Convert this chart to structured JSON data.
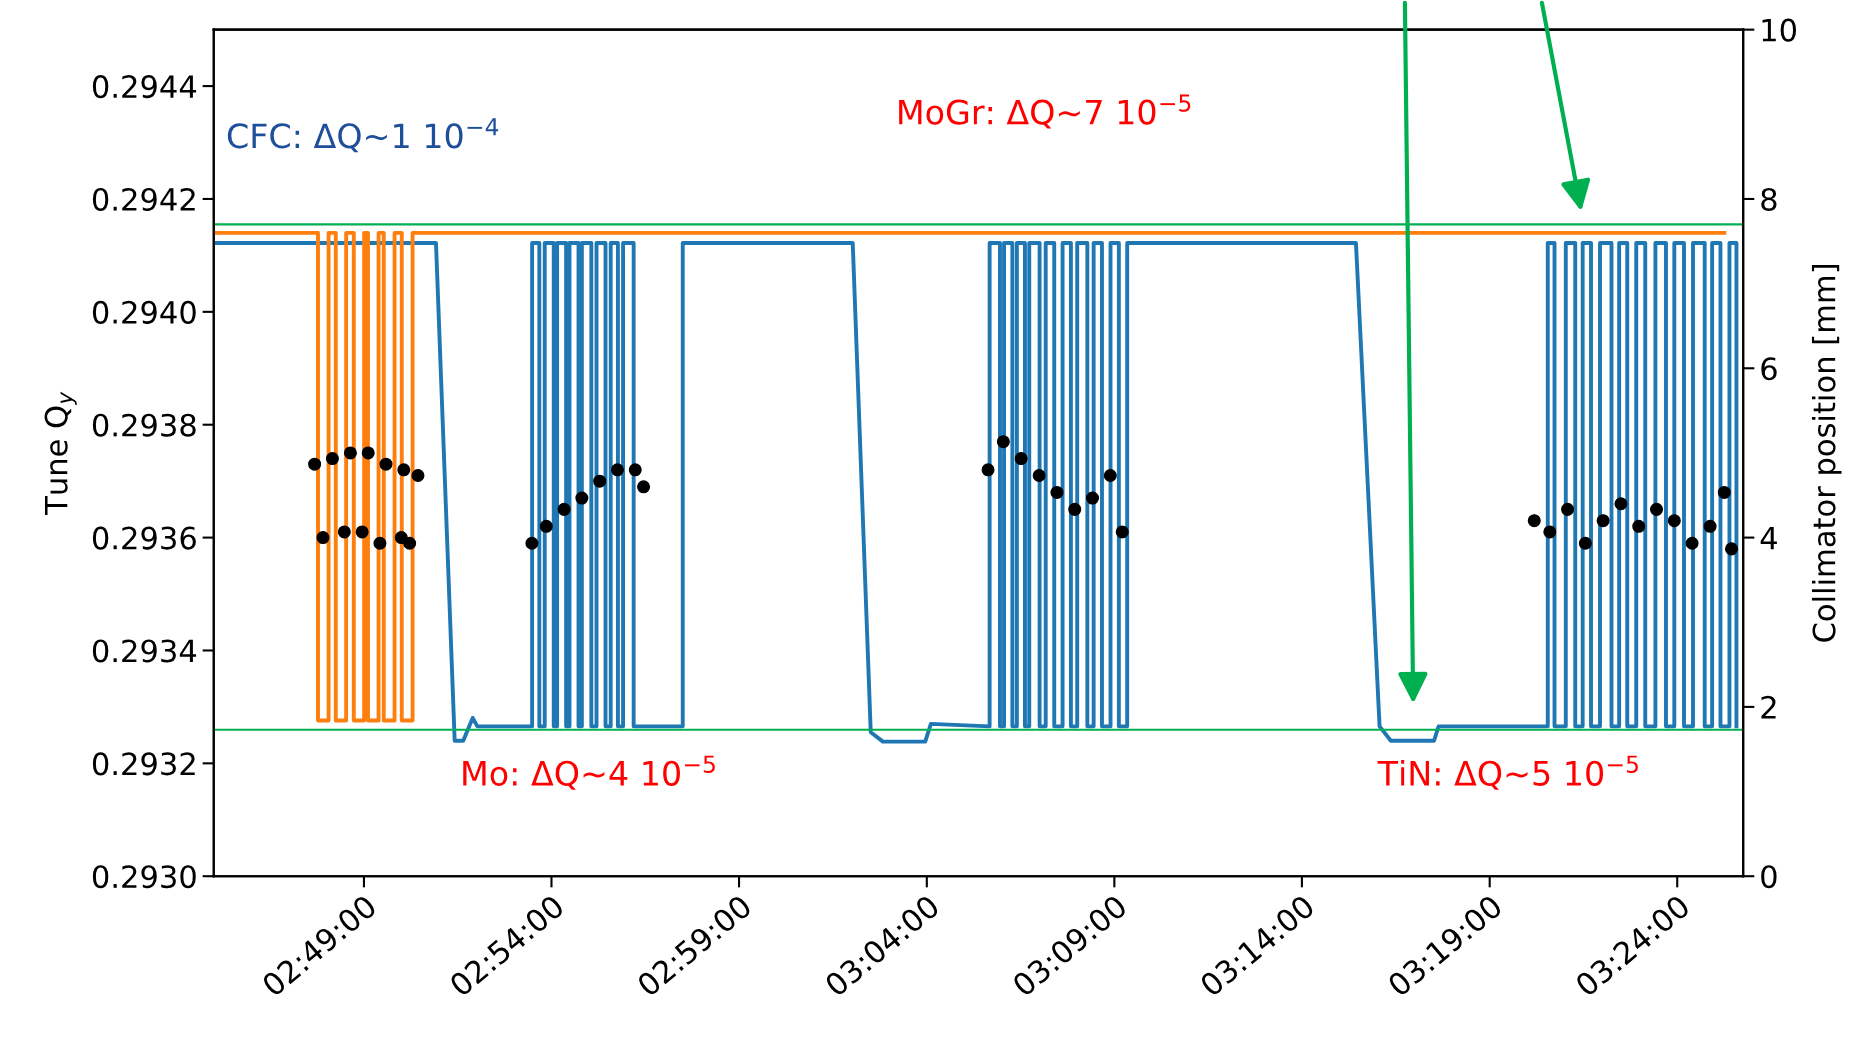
{
  "chart_data": {
    "type": "line",
    "ylabel": "Tune Q$_{y}$",
    "y2label": "Collimator position [mm]",
    "xlim": [
      2.75,
      3.4293
    ],
    "xticks": [
      {
        "value": 2.8167,
        "label": "02:49:00"
      },
      {
        "value": 2.9,
        "label": "02:54:00"
      },
      {
        "value": 2.9833,
        "label": "02:59:00"
      },
      {
        "value": 3.0667,
        "label": "03:04:00"
      },
      {
        "value": 3.15,
        "label": "03:09:00"
      },
      {
        "value": 3.2333,
        "label": "03:14:00"
      },
      {
        "value": 3.3167,
        "label": "03:19:00"
      },
      {
        "value": 3.4,
        "label": "03:24:00"
      }
    ],
    "ylim": [
      0.293,
      0.2945
    ],
    "yticks": [
      {
        "value": 0.293,
        "label": "0.2930"
      },
      0.2932,
      0.2934,
      0.2936,
      0.2938,
      {
        "value": 0.294,
        "label": "0.2940"
      },
      0.2942,
      0.2944
    ],
    "y2lim": [
      0,
      10
    ],
    "y2ticks": [
      0,
      2,
      4,
      6,
      8,
      10
    ],
    "annotations": [
      "CFC: ΔQ~1 10$^{−4}$",
      "MoGr: ΔQ~7 10$^{−5}$",
      "Mo: ΔQ~4 10$^{−5}$",
      "TiN: ΔQ~5 10$^{−5}$"
    ],
    "ref_lines": [
      {
        "axis": "y2",
        "value": 7.7,
        "color": "#00b050"
      },
      {
        "axis": "y2",
        "value": 1.73,
        "color": "#00b050"
      }
    ],
    "series": [
      {
        "type": "scatter",
        "axis": "y",
        "color": "#000000",
        "marker": "circle",
        "x": [
          2.7948,
          2.8027,
          2.8107,
          2.8186,
          2.8265,
          2.8344,
          2.8407,
          2.7985,
          2.808,
          2.8159,
          2.8238,
          2.8333,
          2.837,
          2.8913,
          2.8977,
          2.9056,
          2.9135,
          2.9214,
          2.9293,
          2.9372,
          2.9409,
          3.0939,
          3.1007,
          3.1086,
          3.1166,
          3.1245,
          3.1324,
          3.1403,
          3.1482,
          3.1535,
          3.3365,
          3.3434,
          3.3513,
          3.3592,
          3.3671,
          3.375,
          3.3829,
          3.3908,
          3.3987,
          3.4066,
          3.4146,
          3.4209,
          3.4241
        ],
        "values": [
          0.29373,
          0.29374,
          0.29375,
          0.29375,
          0.29373,
          0.29372,
          0.29371,
          0.2936,
          0.29361,
          0.29361,
          0.29359,
          0.2936,
          0.29359,
          0.29359,
          0.29362,
          0.29365,
          0.29367,
          0.2937,
          0.29372,
          0.29372,
          0.29369,
          0.29372,
          0.29377,
          0.29374,
          0.29371,
          0.29368,
          0.29365,
          0.29367,
          0.29371,
          0.29361,
          0.29363,
          0.29361,
          0.29365,
          0.29359,
          0.29363,
          0.29366,
          0.29362,
          0.29365,
          0.29363,
          0.29359,
          0.29362,
          0.29368,
          0.29358
        ]
      },
      {
        "axis": "y2",
        "color": "#1f77b4",
        "x": [
          2.75,
          2.8487,
          2.857,
          2.8608,
          2.865,
          2.8671,
          2.8914,
          2.8914,
          2.8946,
          2.8946,
          2.897,
          2.897,
          2.901,
          2.901,
          2.9025,
          2.9025,
          2.9065,
          2.9065,
          2.908,
          2.908,
          2.912,
          2.912,
          2.9135,
          2.9135,
          2.9177,
          2.9177,
          2.92,
          2.92,
          2.924,
          2.924,
          2.9263,
          2.9263,
          2.9295,
          2.9295,
          2.9318,
          2.9318,
          2.9365,
          2.9365,
          2.9583,
          2.9583,
          3.0338,
          3.0418,
          3.0472,
          3.066,
          3.0685,
          3.0946,
          3.0946,
          3.0992,
          3.0992,
          3.101,
          3.101,
          3.1047,
          3.1047,
          3.1067,
          3.1067,
          3.1103,
          3.1103,
          3.1122,
          3.1122,
          3.1168,
          3.1168,
          3.1195,
          3.1195,
          3.1233,
          3.1233,
          3.127,
          3.127,
          3.1307,
          3.1307,
          3.1335,
          3.1335,
          3.138,
          3.138,
          3.1408,
          3.1408,
          3.1445,
          3.1445,
          3.1483,
          3.1483,
          3.152,
          3.152,
          3.1557,
          3.1557,
          3.2573,
          3.2678,
          3.2728,
          3.292,
          3.294,
          3.3425,
          3.3425,
          3.3455,
          3.3455,
          3.3505,
          3.3505,
          3.3547,
          3.3547,
          3.358,
          3.358,
          3.3617,
          3.3617,
          3.3657,
          3.3657,
          3.3708,
          3.3708,
          3.3742,
          3.3742,
          3.3778,
          3.3778,
          3.3818,
          3.3818,
          3.3858,
          3.3858,
          3.3903,
          3.3903,
          3.395,
          3.395,
          3.3987,
          3.3987,
          3.403,
          3.403,
          3.407,
          3.407,
          3.4122,
          3.4122,
          3.4155,
          3.4155,
          3.4192,
          3.4192,
          3.4232,
          3.4232,
          3.4263,
          3.4263
        ],
        "values": [
          7.48,
          7.48,
          1.6,
          1.6,
          1.87,
          1.77,
          1.77,
          7.48,
          7.48,
          1.77,
          1.77,
          7.48,
          7.48,
          1.77,
          1.77,
          7.48,
          7.48,
          1.77,
          1.77,
          7.48,
          7.48,
          1.77,
          1.77,
          7.48,
          7.48,
          1.77,
          1.77,
          7.48,
          7.48,
          1.77,
          1.77,
          7.48,
          7.48,
          1.77,
          1.77,
          7.48,
          7.48,
          1.77,
          1.77,
          7.48,
          7.48,
          1.7,
          1.59,
          1.59,
          1.8,
          1.77,
          7.48,
          7.48,
          1.77,
          1.77,
          7.48,
          7.48,
          1.77,
          1.77,
          7.48,
          7.48,
          1.77,
          1.77,
          7.48,
          7.48,
          1.77,
          1.77,
          7.48,
          7.48,
          1.77,
          1.77,
          7.48,
          7.48,
          1.77,
          1.77,
          7.48,
          7.48,
          1.77,
          1.77,
          7.48,
          7.48,
          1.77,
          1.77,
          7.48,
          7.48,
          1.77,
          1.77,
          7.48,
          7.48,
          1.77,
          1.6,
          1.6,
          1.77,
          1.77,
          7.48,
          7.48,
          1.77,
          1.77,
          7.48,
          7.48,
          1.77,
          1.77,
          7.48,
          7.48,
          1.77,
          1.77,
          7.48,
          7.48,
          1.77,
          1.77,
          7.48,
          7.48,
          1.77,
          1.77,
          7.48,
          7.48,
          1.77,
          1.77,
          7.48,
          7.48,
          1.77,
          1.77,
          7.48,
          7.48,
          1.77,
          1.77,
          7.48,
          7.48,
          1.77,
          1.77,
          7.48,
          7.48,
          1.77,
          1.77,
          7.48,
          7.48,
          1.77
        ]
      },
      {
        "axis": "y2",
        "color": "#ff7f0e",
        "x": [
          2.75,
          2.7963,
          2.7963,
          2.801,
          2.801,
          2.8042,
          2.8042,
          2.8088,
          2.8088,
          2.8122,
          2.8122,
          2.8168,
          2.8168,
          2.8185,
          2.8185,
          2.8232,
          2.8232,
          2.8255,
          2.8255,
          2.8303,
          2.8303,
          2.8335,
          2.8335,
          2.8383,
          2.8383,
          3.4209
        ],
        "values": [
          7.6,
          7.6,
          1.84,
          1.84,
          7.6,
          7.6,
          1.84,
          1.84,
          7.6,
          7.6,
          1.84,
          1.84,
          7.6,
          7.6,
          1.84,
          1.84,
          7.6,
          7.6,
          1.84,
          1.84,
          7.6,
          7.6,
          1.84,
          1.84,
          7.6,
          7.6
        ]
      }
    ]
  }
}
